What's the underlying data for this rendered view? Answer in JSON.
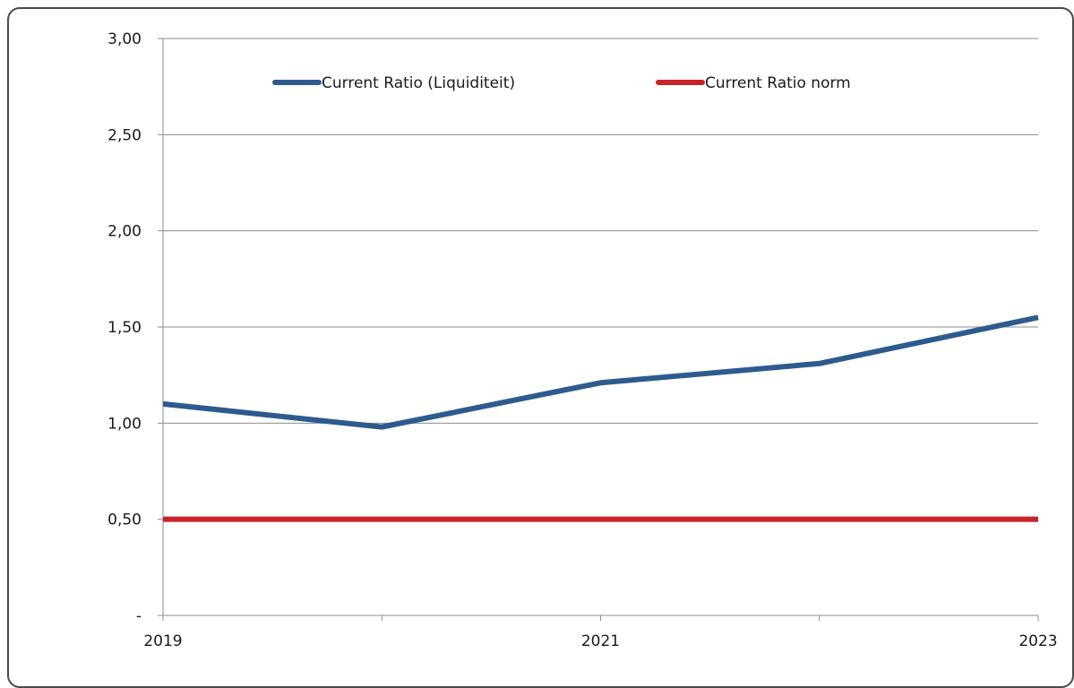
{
  "chart_data": {
    "type": "line",
    "title": "",
    "xlabel": "",
    "ylabel": "",
    "x": [
      2019,
      2020,
      2021,
      2022,
      2023
    ],
    "x_tick_labels": [
      "2019",
      "",
      "2021",
      "",
      "2023"
    ],
    "y_tick_labels": [
      "-",
      "0,50",
      "1,00",
      "1,50",
      "2,00",
      "2,50",
      "3,00"
    ],
    "y_ticks": [
      0,
      0.5,
      1.0,
      1.5,
      2.0,
      2.5,
      3.0
    ],
    "ylim": [
      0,
      3.0
    ],
    "xlim": [
      2019,
      2023
    ],
    "grid": "horizontal",
    "legend_position": "top",
    "series": [
      {
        "name": "Current Ratio (Liquiditeit)",
        "color": "#2d5b8e",
        "values": [
          1.1,
          0.98,
          1.21,
          1.31,
          1.55
        ]
      },
      {
        "name": "Current Ratio norm",
        "color": "#c8232b",
        "values": [
          0.5,
          0.5,
          0.5,
          0.5,
          0.5
        ]
      }
    ]
  }
}
